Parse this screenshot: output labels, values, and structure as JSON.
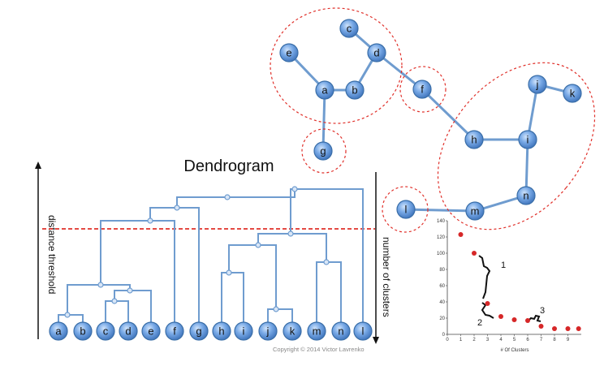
{
  "dendrogram": {
    "title": "Dendrogram",
    "left_axis_label": "distance threshold",
    "right_axis_label": "number of clusters",
    "leaves": [
      "a",
      "b",
      "c",
      "d",
      "e",
      "f",
      "g",
      "h",
      "i",
      "j",
      "k",
      "m",
      "n",
      "l"
    ]
  },
  "graph": {
    "nodes": [
      "a",
      "b",
      "c",
      "d",
      "e",
      "f",
      "g",
      "h",
      "i",
      "j",
      "k",
      "l",
      "m",
      "n"
    ]
  },
  "copyright": "Copyright © 2014 Victor Lavrenko",
  "chart_data": {
    "type": "scatter",
    "xlabel": "# Of Clusters",
    "ylabel": "",
    "x_ticks": [
      0,
      1,
      2,
      3,
      4,
      5,
      6,
      7,
      8,
      9
    ],
    "y_ticks": [
      0,
      20,
      40,
      60,
      80,
      100,
      120,
      140
    ],
    "xlim": [
      0,
      10
    ],
    "ylim": [
      0,
      140
    ],
    "x": [
      1,
      2,
      3,
      4,
      5,
      6,
      7,
      8,
      9,
      9.8
    ],
    "y": [
      123,
      100,
      38,
      22,
      18,
      17,
      10,
      7,
      7,
      7
    ],
    "point_color": "#d62728",
    "annotations": [
      "1",
      "2",
      "3"
    ]
  }
}
